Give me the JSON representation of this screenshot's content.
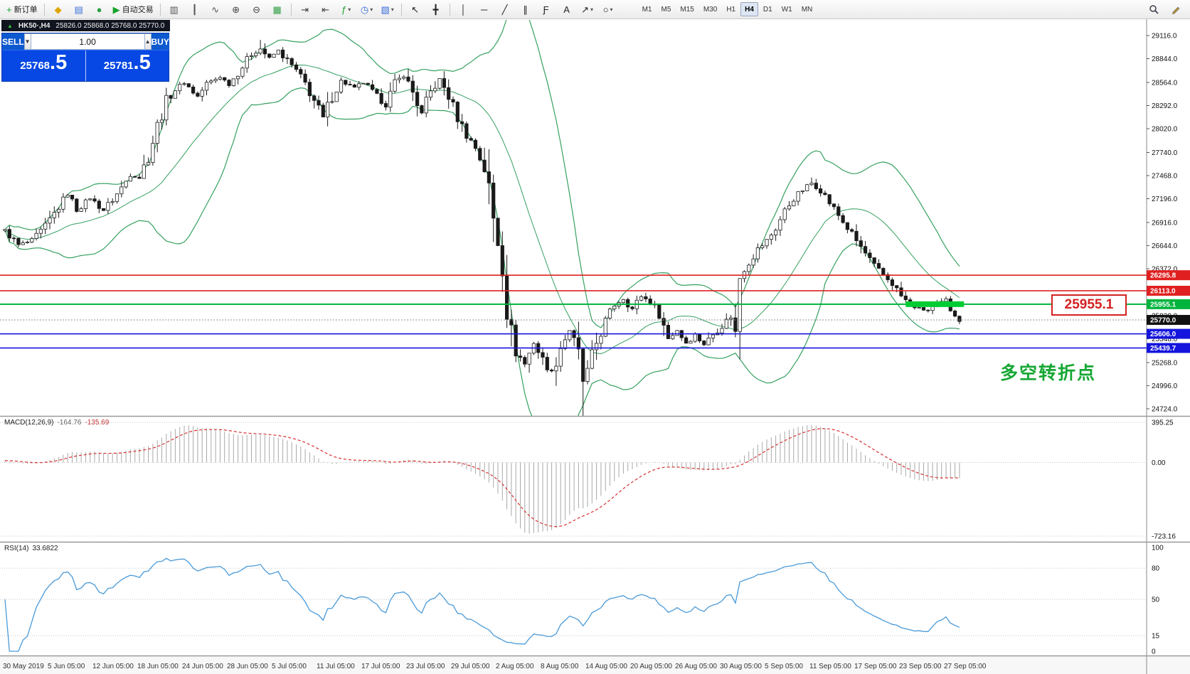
{
  "window": {
    "title": "HK50·,H4",
    "ohlc_line": "25826.0 25868.0 25768.0 25770.0"
  },
  "toolbar": {
    "items": [
      {
        "t": "btn",
        "name": "new-order-button",
        "glyph": "+",
        "glyph_color": "#16a32a",
        "label": "新订单"
      },
      {
        "t": "sep"
      },
      {
        "t": "btn",
        "name": "market-watch-button",
        "glyph": "◆",
        "glyph_color": "#e0a400"
      },
      {
        "t": "btn",
        "name": "data-window-button",
        "glyph": "▤",
        "glyph_color": "#3a6fd8"
      },
      {
        "t": "btn",
        "name": "navigator-button",
        "glyph": "●",
        "glyph_color": "#2f9e44"
      },
      {
        "t": "btn",
        "name": "autotrade-button",
        "glyph": "▶",
        "glyph_color": "#16a32a",
        "label": "自动交易"
      },
      {
        "t": "sep"
      },
      {
        "t": "btn",
        "name": "bar-chart-button",
        "glyph": "▥",
        "glyph_color": "#555555"
      },
      {
        "t": "btn",
        "name": "candlestick-chart-button",
        "glyph": "┃",
        "glyph_color": "#555555"
      },
      {
        "t": "btn",
        "name": "line-chart-button",
        "glyph": "∿",
        "glyph_color": "#555555"
      },
      {
        "t": "btn",
        "name": "zoom-in-button",
        "glyph": "⊕",
        "glyph_color": "#444444"
      },
      {
        "t": "btn",
        "name": "zoom-out-button",
        "glyph": "⊖",
        "glyph_color": "#444444"
      },
      {
        "t": "btn",
        "name": "tile-windows-button",
        "glyph": "▦",
        "glyph_color": "#2f9e44"
      },
      {
        "t": "sep"
      },
      {
        "t": "btn",
        "name": "auto-scroll-button",
        "glyph": "⇥",
        "glyph_color": "#444444"
      },
      {
        "t": "btn",
        "name": "chart-shift-button",
        "glyph": "⇤",
        "glyph_color": "#444444"
      },
      {
        "t": "btn",
        "name": "indicators-button",
        "glyph": "ƒ",
        "glyph_color": "#16a32a",
        "caret": true
      },
      {
        "t": "btn",
        "name": "periods-button",
        "glyph": "◷",
        "glyph_color": "#3a6fd8",
        "caret": true
      },
      {
        "t": "btn",
        "name": "templates-button",
        "glyph": "▧",
        "glyph_color": "#3a6fd8",
        "caret": true
      },
      {
        "t": "sep"
      },
      {
        "t": "btn",
        "name": "cursor-button",
        "glyph": "↖",
        "glyph_color": "#222222"
      },
      {
        "t": "btn",
        "name": "crosshair-button",
        "glyph": "╋",
        "glyph_color": "#222222"
      },
      {
        "t": "sep"
      },
      {
        "t": "btn",
        "name": "vertical-line-button",
        "glyph": "│",
        "glyph_color": "#222222"
      },
      {
        "t": "btn",
        "name": "horizontal-line-button",
        "glyph": "─",
        "glyph_color": "#222222"
      },
      {
        "t": "btn",
        "name": "trendline-button",
        "glyph": "╱",
        "glyph_color": "#222222"
      },
      {
        "t": "btn",
        "name": "channel-button",
        "glyph": "∥",
        "glyph_color": "#222222"
      },
      {
        "t": "btn",
        "name": "fibonacci-button",
        "glyph": "Ƒ",
        "glyph_color": "#222222"
      },
      {
        "t": "btn",
        "name": "text-label-button",
        "glyph": "A",
        "glyph_color": "#222222"
      },
      {
        "t": "btn",
        "name": "arrows-button",
        "glyph": "↗",
        "glyph_color": "#222222",
        "caret": true
      },
      {
        "t": "btn",
        "name": "shapes-button",
        "glyph": "○",
        "glyph_color": "#222222",
        "caret": true
      }
    ],
    "timeframes": [
      "M1",
      "M5",
      "M15",
      "M30",
      "H1",
      "H4",
      "D1",
      "W1",
      "MN"
    ],
    "active_timeframe": "H4"
  },
  "trade_panel": {
    "sell_label": "SELL",
    "buy_label": "BUY",
    "volume": "1.00",
    "sell_price_int": "25768",
    "sell_price_frac": ".5",
    "buy_price_int": "25781",
    "buy_price_frac": ".5"
  },
  "annotations": {
    "price_callout": "25955.1",
    "turning_point_note": "多空转折点"
  },
  "macd_panel": {
    "title": "MACD(12,26,9)",
    "main_value": "-164.76",
    "signal_value": "-135.69"
  },
  "rsi_panel": {
    "title": "RSI(14)",
    "value": "33.6822"
  },
  "chart_data": {
    "type": "candlestick",
    "symbol": "HK50",
    "period": "H4",
    "current_ohlc": {
      "open": 25826.0,
      "high": 25868.0,
      "low": 25768.0,
      "close": 25770.0
    },
    "price_ticks": [
      29116.0,
      28844.0,
      28564.0,
      28292.0,
      28020.0,
      27740.0,
      27468.0,
      27196.0,
      26916.0,
      26644.0,
      26372.0,
      25820.0,
      25548.0,
      25268.0,
      24996.0,
      24724.0
    ],
    "hlines": [
      {
        "value": 26295.8,
        "color": "#e02020",
        "width": 1.6
      },
      {
        "value": 26113.0,
        "color": "#e02020",
        "width": 1.6
      },
      {
        "value": 25955.1,
        "color": "#00b43c",
        "width": 2
      },
      {
        "value": 25606.0,
        "color": "#1515dd",
        "width": 1.6
      },
      {
        "value": 25439.7,
        "color": "#1515dd",
        "width": 1.6
      }
    ],
    "bid_line": {
      "value": 25770.0,
      "color": "#111111"
    },
    "highlight_segment": {
      "value": 25955.1,
      "from_candle": 201,
      "to_candle": 214
    },
    "candle_count": 214,
    "close_anchors": [
      [
        0,
        26820
      ],
      [
        3,
        26650
      ],
      [
        6,
        26700
      ],
      [
        9,
        26870
      ],
      [
        12,
        27100
      ],
      [
        14,
        27250
      ],
      [
        16,
        27060
      ],
      [
        19,
        27200
      ],
      [
        22,
        27060
      ],
      [
        25,
        27250
      ],
      [
        28,
        27480
      ],
      [
        30,
        27450
      ],
      [
        32,
        27700
      ],
      [
        34,
        28050
      ],
      [
        36,
        28350
      ],
      [
        38,
        28480
      ],
      [
        40,
        28560
      ],
      [
        43,
        28400
      ],
      [
        45,
        28550
      ],
      [
        48,
        28630
      ],
      [
        50,
        28540
      ],
      [
        53,
        28750
      ],
      [
        55,
        28900
      ],
      [
        57,
        28960
      ],
      [
        59,
        28850
      ],
      [
        61,
        28940
      ],
      [
        63,
        28820
      ],
      [
        65,
        28700
      ],
      [
        67,
        28550
      ],
      [
        69,
        28350
      ],
      [
        71,
        28150
      ],
      [
        73,
        28400
      ],
      [
        75,
        28580
      ],
      [
        78,
        28500
      ],
      [
        80,
        28560
      ],
      [
        83,
        28400
      ],
      [
        85,
        28300
      ],
      [
        87,
        28550
      ],
      [
        89,
        28650
      ],
      [
        91,
        28450
      ],
      [
        93,
        28200
      ],
      [
        95,
        28450
      ],
      [
        97,
        28600
      ],
      [
        99,
        28400
      ],
      [
        101,
        28150
      ],
      [
        103,
        27950
      ],
      [
        105,
        27800
      ],
      [
        107,
        27550
      ],
      [
        108,
        27300
      ],
      [
        109,
        26950
      ],
      [
        110,
        26700
      ],
      [
        111,
        26450
      ],
      [
        112,
        25950
      ],
      [
        113,
        25600
      ],
      [
        114,
        25400
      ],
      [
        116,
        25250
      ],
      [
        118,
        25500
      ],
      [
        120,
        25300
      ],
      [
        122,
        25150
      ],
      [
        124,
        25450
      ],
      [
        126,
        25650
      ],
      [
        128,
        25350
      ],
      [
        129,
        25050
      ],
      [
        130,
        25150
      ],
      [
        132,
        25500
      ],
      [
        134,
        25750
      ],
      [
        136,
        25950
      ],
      [
        138,
        26020
      ],
      [
        140,
        25900
      ],
      [
        142,
        26050
      ],
      [
        144,
        25980
      ],
      [
        146,
        25850
      ],
      [
        148,
        25550
      ],
      [
        150,
        25650
      ],
      [
        152,
        25500
      ],
      [
        154,
        25600
      ],
      [
        156,
        25480
      ],
      [
        158,
        25600
      ],
      [
        160,
        25700
      ],
      [
        162,
        25820
      ],
      [
        163,
        25600
      ],
      [
        164,
        26300
      ],
      [
        166,
        26450
      ],
      [
        168,
        26600
      ],
      [
        170,
        26700
      ],
      [
        172,
        26850
      ],
      [
        174,
        27050
      ],
      [
        176,
        27200
      ],
      [
        178,
        27300
      ],
      [
        180,
        27380
      ],
      [
        182,
        27300
      ],
      [
        184,
        27150
      ],
      [
        186,
        27000
      ],
      [
        188,
        26850
      ],
      [
        190,
        26700
      ],
      [
        192,
        26550
      ],
      [
        194,
        26400
      ],
      [
        196,
        26300
      ],
      [
        198,
        26200
      ],
      [
        200,
        26050
      ],
      [
        202,
        25950
      ],
      [
        204,
        25900
      ],
      [
        206,
        25880
      ],
      [
        208,
        25950
      ],
      [
        210,
        26000
      ],
      [
        211,
        25900
      ],
      [
        212,
        25850
      ],
      [
        213,
        25770
      ]
    ],
    "wick_events": [
      {
        "i": 129,
        "low": 300
      },
      {
        "i": 123,
        "low": 130
      },
      {
        "i": 112,
        "low": 90
      },
      {
        "i": 57,
        "high": 80
      },
      {
        "i": 180,
        "high": 60
      }
    ],
    "indicators": {
      "bollinger": {
        "period": 20,
        "deviation": 2
      },
      "macd": {
        "fast": 12,
        "slow": 26,
        "signal": 9,
        "scale_max": 395.25,
        "scale_min": -723.16,
        "current_main": -164.76,
        "current_signal": -135.69
      },
      "rsi": {
        "period": 14,
        "current": 33.6822,
        "levels": [
          80,
          50,
          15
        ],
        "axis": [
          100,
          80,
          50,
          15,
          0
        ]
      }
    },
    "time_labels": [
      "30 May 2019",
      "5 Jun 05:00",
      "12 Jun 05:00",
      "18 Jun 05:00",
      "24 Jun 05:00",
      "28 Jun 05:00",
      "5 Jul 05:00",
      "11 Jul 05:00",
      "17 Jul 05:00",
      "23 Jul 05:00",
      "29 Jul 05:00",
      "2 Aug 05:00",
      "8 Aug 05:00",
      "14 Aug 05:00",
      "20 Aug 05:00",
      "26 Aug 05:00",
      "30 Aug 05:00",
      "5 Sep 05:00",
      "11 Sep 05:00",
      "17 Sep 05:00",
      "23 Sep 05:00",
      "27 Sep 05:00"
    ]
  }
}
